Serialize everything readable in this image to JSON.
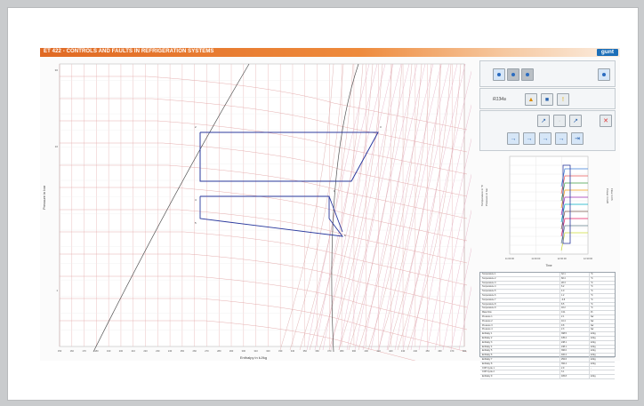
{
  "app": {
    "title": "ET 422 - CONTROLS AND FAULTS IN REFRIGERATION SYSTEMS",
    "logo": "gunt"
  },
  "diagram": {
    "ylabel": "Pressure in bar",
    "xlabel": "Enthalpy in kJ/kg",
    "y_ticks": [
      "30",
      "10",
      "1"
    ],
    "x_ticks": [
      "150",
      "160",
      "170",
      "180",
      "190",
      "200",
      "210",
      "220",
      "230",
      "240",
      "250",
      "260",
      "270",
      "280",
      "290",
      "300",
      "310",
      "320",
      "330",
      "340",
      "350",
      "360",
      "370",
      "380",
      "390",
      "400",
      "410",
      "420",
      "430",
      "440",
      "450",
      "460",
      "470",
      "480"
    ],
    "point_labels": [
      "2",
      "3",
      "4",
      "1",
      "5",
      "6"
    ]
  },
  "panel": {
    "refrigerant_label": "R134a",
    "trend": {
      "left_axis_label": "Temperature in °C",
      "left_axis2_label": "Pressure in bar",
      "right_axis_label": "Flow in l/h",
      "right_axis2_label": "Power in kW",
      "xlabel": "Time",
      "x_ticks": [
        "11:00:00",
        "11:30:00",
        "12:00:00",
        "12:30:00"
      ]
    },
    "table": [
      {
        "name": "Temperature 1",
        "value": "32.1",
        "unit": "°C"
      },
      {
        "name": "Temperature 2",
        "value": "68.4",
        "unit": "°C"
      },
      {
        "name": "Temperature 3",
        "value": "28.3",
        "unit": "°C"
      },
      {
        "name": "Temperature 4",
        "value": "6.2",
        "unit": "°C"
      },
      {
        "name": "Temperature 5",
        "value": "4.0",
        "unit": "°C"
      },
      {
        "name": "Temperature 6",
        "value": "1.2",
        "unit": "°C"
      },
      {
        "name": "Temperature 7",
        "value": "-3.8",
        "unit": "°C"
      },
      {
        "name": "Temperature 8",
        "value": "8.5",
        "unit": "°C"
      },
      {
        "name": "Temperature 9",
        "value": "18.2",
        "unit": "°C"
      },
      {
        "name": "Mass flow",
        "value": "0.11",
        "unit": "l/h"
      },
      {
        "name": "Pressure 1",
        "value": "2.1",
        "unit": "bar"
      },
      {
        "name": "Pressure 2",
        "value": "10.4",
        "unit": "bar"
      },
      {
        "name": "Pressure 3",
        "value": "9.8",
        "unit": "bar"
      },
      {
        "name": "Pressure 4",
        "value": "2.3",
        "unit": "bar"
      },
      {
        "name": "Enthalpy 1",
        "value": "398.5",
        "unit": "kJ/kg"
      },
      {
        "name": "Enthalpy 2",
        "value": "435.2",
        "unit": "kJ/kg"
      },
      {
        "name": "Enthalpy 3",
        "value": "248.1",
        "unit": "kJ/kg"
      },
      {
        "name": "Enthalpy 4",
        "value": "248.1",
        "unit": "kJ/kg"
      },
      {
        "name": "Enthalpy 5",
        "value": "396.0",
        "unit": "kJ/kg"
      },
      {
        "name": "Enthalpy 6",
        "value": "400.2",
        "unit": "kJ/kg"
      },
      {
        "name": "Enthalpy 7",
        "value": "252.6",
        "unit": "kJ/kg"
      },
      {
        "name": "Enthalpy 8",
        "value": "392.4",
        "unit": "kJ/kg"
      },
      {
        "name": "COP Cycle 1",
        "value": "2.9",
        "unit": "-"
      },
      {
        "name": "COP Cycle 2",
        "value": "3.1",
        "unit": "-"
      },
      {
        "name": "Enthalpy 9",
        "value": "405.8",
        "unit": "kJ/kg"
      }
    ]
  },
  "colors": {
    "accent": "#e06a24",
    "logo": "#1d6fb8",
    "cycle": "#2b3a9e",
    "grid": "#e3a6a6",
    "isentrope": "#e7b4c8"
  }
}
